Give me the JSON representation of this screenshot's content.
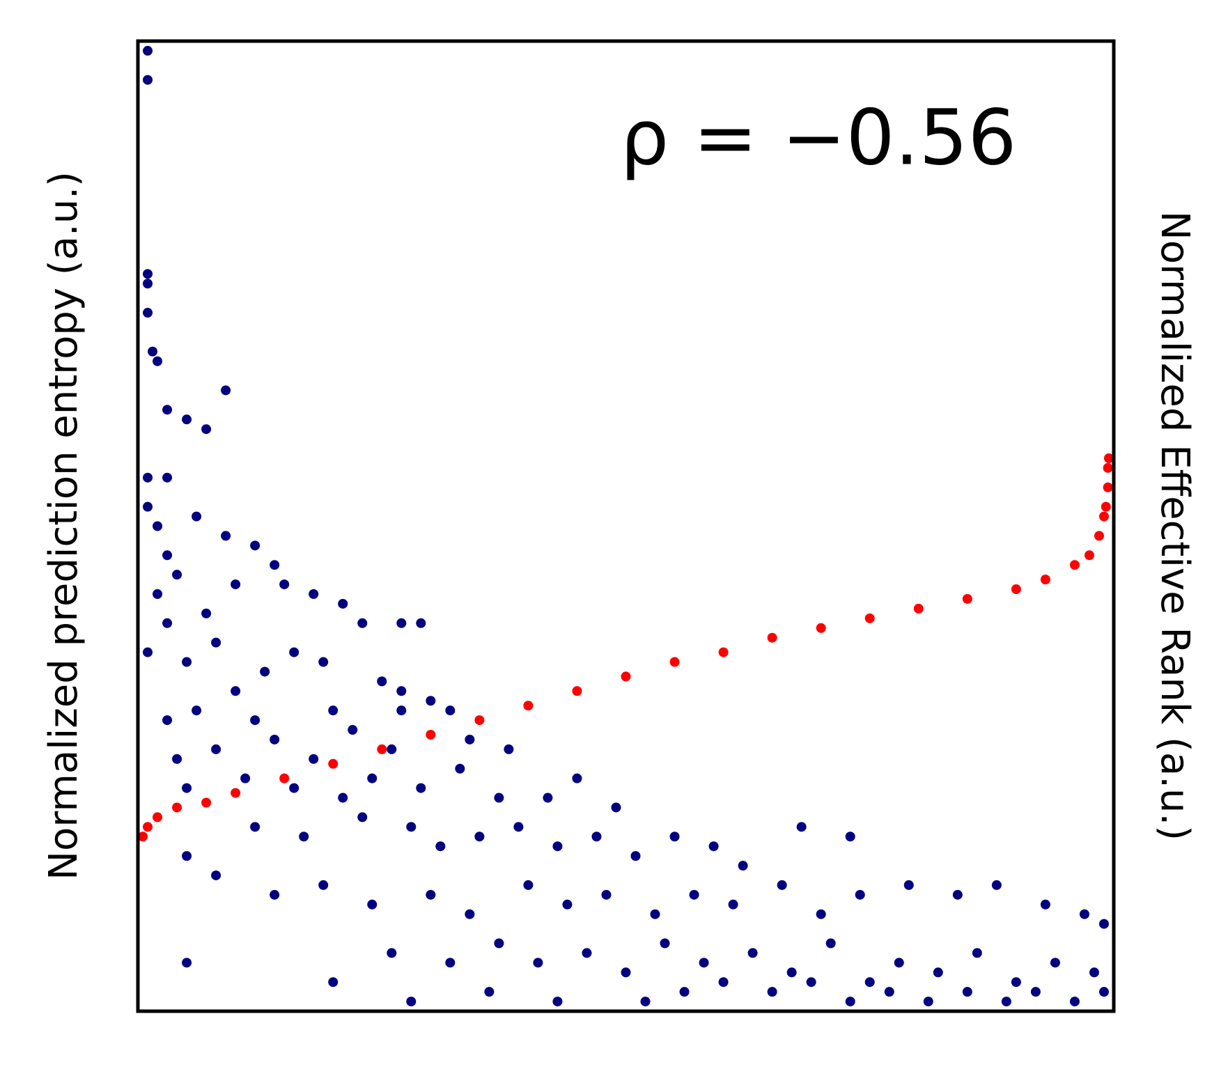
{
  "chart_data": {
    "type": "scatter",
    "annotation": "ρ = −0.56",
    "ylabel": "Normalized prediction entropy (a.u.)",
    "y2label": "Normalized Effective Rank (a.u.)",
    "xlim": [
      0,
      1
    ],
    "ylim": [
      0,
      1
    ],
    "y2lim": [
      0,
      1
    ],
    "series": [
      {
        "color": "#000080",
        "x": [
          0.01,
          0.01,
          0.01,
          0.01,
          0.01,
          0.015,
          0.02,
          0.09,
          0.03,
          0.05,
          0.07,
          0.01,
          0.03,
          0.01,
          0.06,
          0.02,
          0.09,
          0.03,
          0.12,
          0.04,
          0.14,
          0.02,
          0.1,
          0.03,
          0.07,
          0.15,
          0.18,
          0.21,
          0.23,
          0.01,
          0.05,
          0.08,
          0.13,
          0.16,
          0.19,
          0.27,
          0.29,
          0.03,
          0.06,
          0.1,
          0.12,
          0.2,
          0.25,
          0.27,
          0.04,
          0.08,
          0.14,
          0.18,
          0.22,
          0.26,
          0.27,
          0.3,
          0.32,
          0.34,
          0.38,
          0.05,
          0.11,
          0.16,
          0.21,
          0.24,
          0.29,
          0.33,
          0.37,
          0.42,
          0.45,
          0.49,
          0.12,
          0.17,
          0.23,
          0.28,
          0.31,
          0.35,
          0.39,
          0.43,
          0.47,
          0.51,
          0.55,
          0.59,
          0.62,
          0.68,
          0.73,
          0.05,
          0.08,
          0.14,
          0.19,
          0.24,
          0.3,
          0.34,
          0.4,
          0.44,
          0.48,
          0.53,
          0.57,
          0.61,
          0.66,
          0.7,
          0.74,
          0.79,
          0.84,
          0.88,
          0.93,
          0.97,
          0.99,
          0.26,
          0.32,
          0.37,
          0.41,
          0.46,
          0.5,
          0.54,
          0.58,
          0.63,
          0.67,
          0.71,
          0.75,
          0.78,
          0.82,
          0.86,
          0.9,
          0.94,
          0.98,
          0.56,
          0.6,
          0.65,
          0.69,
          0.73,
          0.77,
          0.81,
          0.85,
          0.89,
          0.92,
          0.96,
          0.99,
          0.05,
          0.2,
          0.28,
          0.36,
          0.43,
          0.52
        ],
        "values": [
          0.99,
          0.96,
          0.76,
          0.75,
          0.72,
          0.68,
          0.67,
          0.64,
          0.62,
          0.61,
          0.6,
          0.55,
          0.55,
          0.52,
          0.51,
          0.5,
          0.49,
          0.47,
          0.48,
          0.45,
          0.46,
          0.43,
          0.44,
          0.4,
          0.41,
          0.44,
          0.43,
          0.42,
          0.4,
          0.37,
          0.36,
          0.38,
          0.35,
          0.37,
          0.36,
          0.4,
          0.4,
          0.3,
          0.31,
          0.33,
          0.3,
          0.31,
          0.34,
          0.33,
          0.26,
          0.27,
          0.28,
          0.26,
          0.29,
          0.27,
          0.31,
          0.32,
          0.31,
          0.28,
          0.27,
          0.23,
          0.24,
          0.23,
          0.22,
          0.24,
          0.23,
          0.25,
          0.22,
          0.22,
          0.24,
          0.21,
          0.19,
          0.18,
          0.2,
          0.19,
          0.17,
          0.18,
          0.19,
          0.17,
          0.18,
          0.16,
          0.18,
          0.17,
          0.15,
          0.19,
          0.18,
          0.16,
          0.14,
          0.12,
          0.13,
          0.11,
          0.12,
          0.1,
          0.13,
          0.11,
          0.12,
          0.1,
          0.12,
          0.11,
          0.13,
          0.1,
          0.12,
          0.13,
          0.12,
          0.13,
          0.11,
          0.1,
          0.09,
          0.06,
          0.05,
          0.07,
          0.05,
          0.06,
          0.04,
          0.07,
          0.05,
          0.06,
          0.04,
          0.07,
          0.03,
          0.05,
          0.04,
          0.06,
          0.03,
          0.05,
          0.04,
          0.02,
          0.03,
          0.02,
          0.03,
          0.01,
          0.02,
          0.01,
          0.02,
          0.01,
          0.02,
          0.01,
          0.02,
          0.05,
          0.03,
          0.01,
          0.02,
          0.01,
          0.01
        ]
      },
      {
        "color": "#ff0000",
        "axis": "y2",
        "x": [
          0.005,
          0.01,
          0.02,
          0.04,
          0.07,
          0.1,
          0.15,
          0.2,
          0.25,
          0.3,
          0.35,
          0.4,
          0.45,
          0.5,
          0.55,
          0.6,
          0.65,
          0.7,
          0.75,
          0.8,
          0.85,
          0.9,
          0.93,
          0.96,
          0.975,
          0.985,
          0.99,
          0.992,
          0.994,
          0.994,
          0.995
        ],
        "values": [
          0.18,
          0.19,
          0.2,
          0.21,
          0.215,
          0.225,
          0.24,
          0.255,
          0.27,
          0.285,
          0.3,
          0.315,
          0.33,
          0.345,
          0.36,
          0.37,
          0.385,
          0.395,
          0.405,
          0.415,
          0.425,
          0.435,
          0.445,
          0.46,
          0.47,
          0.49,
          0.51,
          0.52,
          0.54,
          0.56,
          0.57
        ]
      }
    ]
  }
}
